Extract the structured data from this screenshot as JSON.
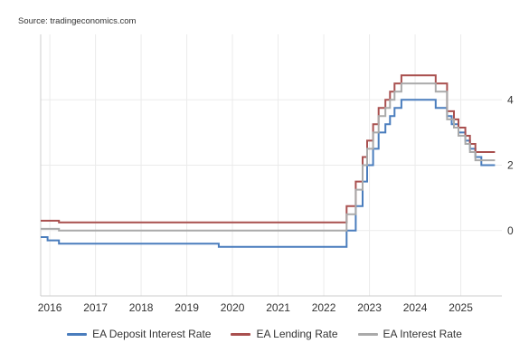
{
  "source": "Source: tradingeconomics.com",
  "chart_data": {
    "type": "line",
    "xlim": [
      2015.8,
      2025.9
    ],
    "ylim": [
      -2,
      6
    ],
    "x_ticks": [
      2016,
      2017,
      2018,
      2019,
      2020,
      2021,
      2022,
      2023,
      2024,
      2025
    ],
    "y_ticks": [
      0,
      2,
      4
    ],
    "grid": true,
    "legend_position": "bottom",
    "series": [
      {
        "name": "EA Deposit Interest Rate",
        "color": "#4a7dbd",
        "points": [
          [
            2015.8,
            -0.2
          ],
          [
            2015.95,
            -0.2
          ],
          [
            2015.95,
            -0.3
          ],
          [
            2016.2,
            -0.3
          ],
          [
            2016.2,
            -0.4
          ],
          [
            2019.7,
            -0.4
          ],
          [
            2019.7,
            -0.5
          ],
          [
            2022.5,
            -0.5
          ],
          [
            2022.5,
            0
          ],
          [
            2022.7,
            0
          ],
          [
            2022.7,
            0.75
          ],
          [
            2022.85,
            0.75
          ],
          [
            2022.85,
            1.5
          ],
          [
            2022.95,
            1.5
          ],
          [
            2022.95,
            2.0
          ],
          [
            2023.08,
            2.0
          ],
          [
            2023.08,
            2.5
          ],
          [
            2023.2,
            2.5
          ],
          [
            2023.2,
            3.0
          ],
          [
            2023.35,
            3.0
          ],
          [
            2023.35,
            3.25
          ],
          [
            2023.45,
            3.25
          ],
          [
            2023.45,
            3.5
          ],
          [
            2023.55,
            3.5
          ],
          [
            2023.55,
            3.75
          ],
          [
            2023.7,
            3.75
          ],
          [
            2023.7,
            4.0
          ],
          [
            2024.45,
            4.0
          ],
          [
            2024.45,
            3.75
          ],
          [
            2024.7,
            3.75
          ],
          [
            2024.7,
            3.5
          ],
          [
            2024.8,
            3.5
          ],
          [
            2024.8,
            3.25
          ],
          [
            2024.95,
            3.25
          ],
          [
            2024.95,
            3.0
          ],
          [
            2025.1,
            3.0
          ],
          [
            2025.1,
            2.75
          ],
          [
            2025.2,
            2.75
          ],
          [
            2025.2,
            2.5
          ],
          [
            2025.32,
            2.5
          ],
          [
            2025.32,
            2.25
          ],
          [
            2025.45,
            2.25
          ],
          [
            2025.45,
            2.0
          ],
          [
            2025.75,
            2.0
          ]
        ]
      },
      {
        "name": "EA Lending Rate",
        "color": "#a9504f",
        "points": [
          [
            2015.8,
            0.3
          ],
          [
            2016.2,
            0.3
          ],
          [
            2016.2,
            0.25
          ],
          [
            2022.5,
            0.25
          ],
          [
            2022.5,
            0.75
          ],
          [
            2022.7,
            0.75
          ],
          [
            2022.7,
            1.5
          ],
          [
            2022.85,
            1.5
          ],
          [
            2022.85,
            2.25
          ],
          [
            2022.95,
            2.25
          ],
          [
            2022.95,
            2.75
          ],
          [
            2023.08,
            2.75
          ],
          [
            2023.08,
            3.25
          ],
          [
            2023.2,
            3.25
          ],
          [
            2023.2,
            3.75
          ],
          [
            2023.35,
            3.75
          ],
          [
            2023.35,
            4.0
          ],
          [
            2023.45,
            4.0
          ],
          [
            2023.45,
            4.25
          ],
          [
            2023.55,
            4.25
          ],
          [
            2023.55,
            4.5
          ],
          [
            2023.7,
            4.5
          ],
          [
            2023.7,
            4.75
          ],
          [
            2024.45,
            4.75
          ],
          [
            2024.45,
            4.5
          ],
          [
            2024.7,
            4.5
          ],
          [
            2024.7,
            3.65
          ],
          [
            2024.85,
            3.65
          ],
          [
            2024.85,
            3.4
          ],
          [
            2024.95,
            3.4
          ],
          [
            2024.95,
            3.15
          ],
          [
            2025.1,
            3.15
          ],
          [
            2025.1,
            2.9
          ],
          [
            2025.2,
            2.9
          ],
          [
            2025.2,
            2.65
          ],
          [
            2025.32,
            2.65
          ],
          [
            2025.32,
            2.4
          ],
          [
            2025.75,
            2.4
          ]
        ]
      },
      {
        "name": "EA Interest Rate",
        "color": "#aaaaaa",
        "points": [
          [
            2015.8,
            0.05
          ],
          [
            2016.2,
            0.05
          ],
          [
            2016.2,
            0.0
          ],
          [
            2022.5,
            0.0
          ],
          [
            2022.5,
            0.5
          ],
          [
            2022.7,
            0.5
          ],
          [
            2022.7,
            1.25
          ],
          [
            2022.85,
            1.25
          ],
          [
            2022.85,
            2.0
          ],
          [
            2022.95,
            2.0
          ],
          [
            2022.95,
            2.5
          ],
          [
            2023.08,
            2.5
          ],
          [
            2023.08,
            3.0
          ],
          [
            2023.2,
            3.0
          ],
          [
            2023.2,
            3.5
          ],
          [
            2023.35,
            3.5
          ],
          [
            2023.35,
            3.75
          ],
          [
            2023.45,
            3.75
          ],
          [
            2023.45,
            4.0
          ],
          [
            2023.55,
            4.0
          ],
          [
            2023.55,
            4.25
          ],
          [
            2023.7,
            4.25
          ],
          [
            2023.7,
            4.5
          ],
          [
            2024.45,
            4.5
          ],
          [
            2024.45,
            4.25
          ],
          [
            2024.7,
            4.25
          ],
          [
            2024.7,
            3.4
          ],
          [
            2024.85,
            3.4
          ],
          [
            2024.85,
            3.15
          ],
          [
            2024.95,
            3.15
          ],
          [
            2024.95,
            2.9
          ],
          [
            2025.1,
            2.9
          ],
          [
            2025.1,
            2.65
          ],
          [
            2025.2,
            2.65
          ],
          [
            2025.2,
            2.4
          ],
          [
            2025.32,
            2.4
          ],
          [
            2025.32,
            2.15
          ],
          [
            2025.75,
            2.15
          ]
        ]
      }
    ]
  }
}
